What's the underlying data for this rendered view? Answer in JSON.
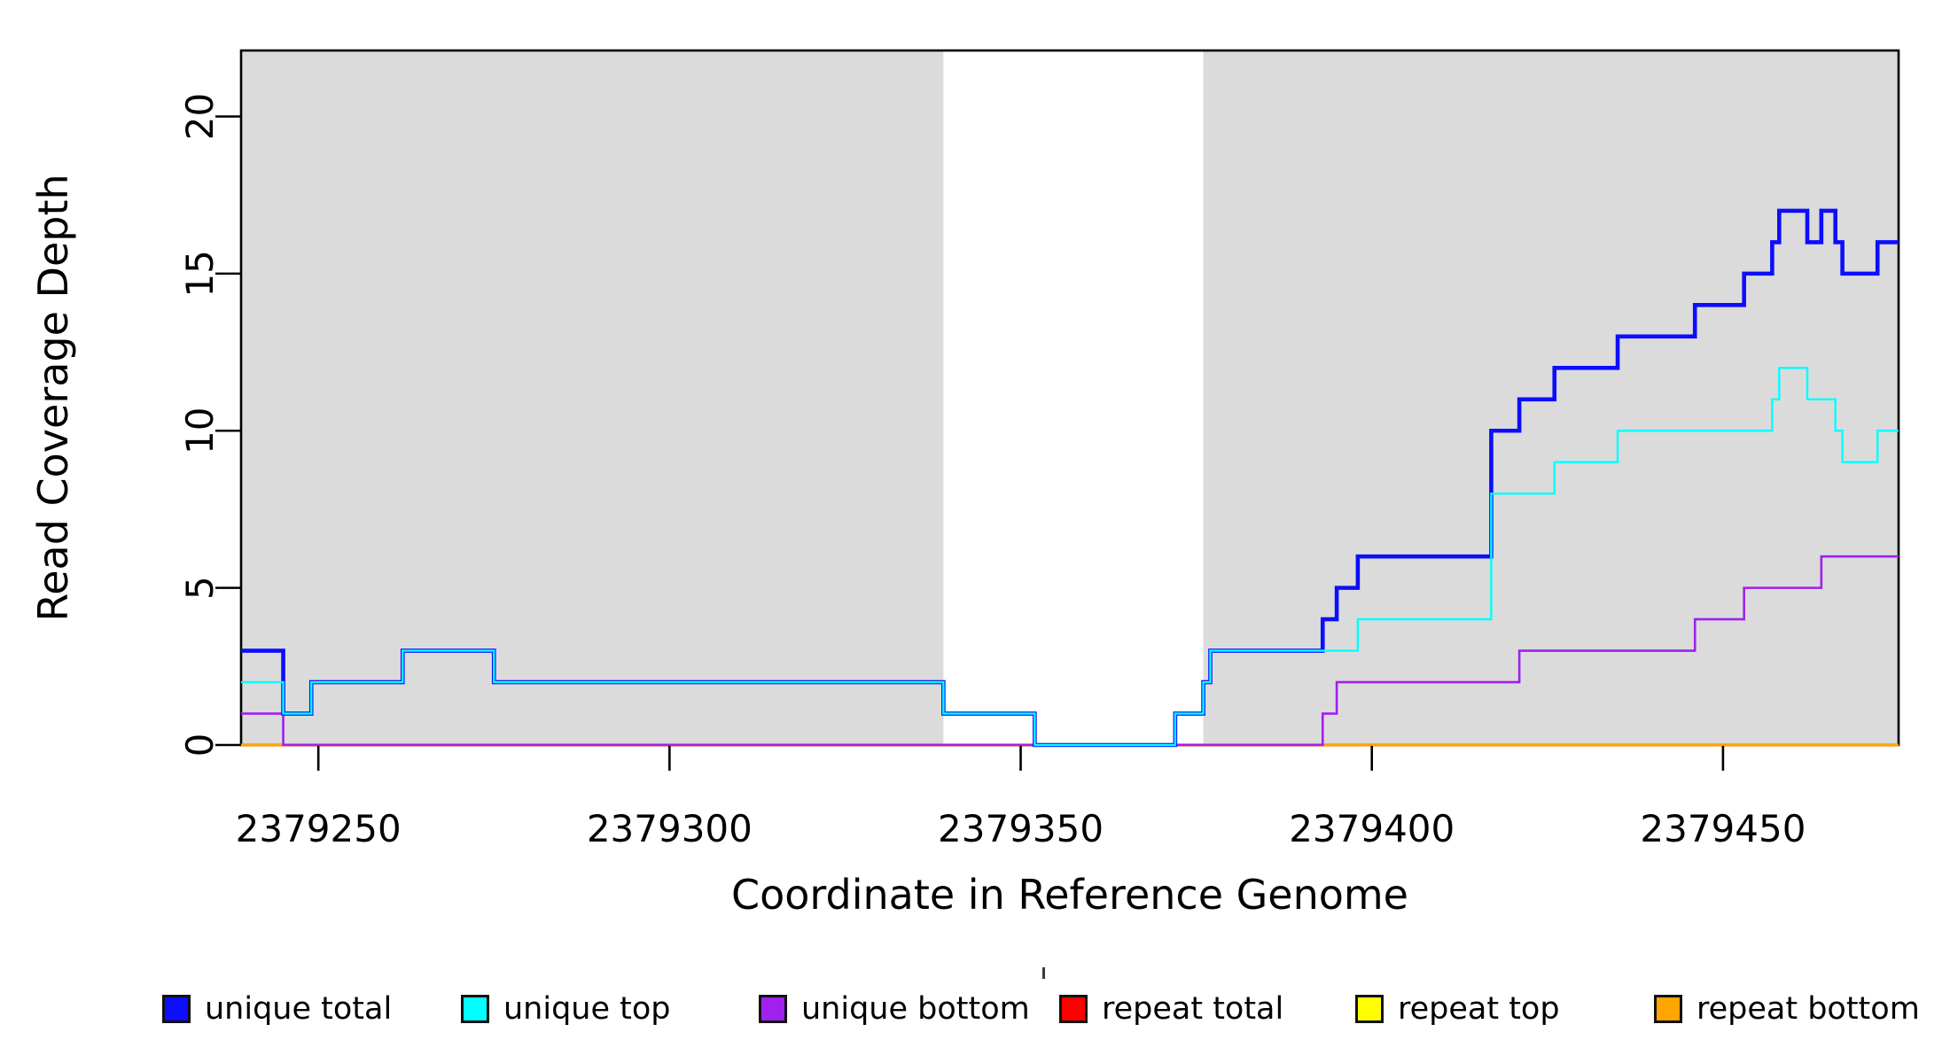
{
  "figure": {
    "background": "#FFFFFF",
    "shaded_color": "#DBDBDB",
    "box_color": "#000000"
  },
  "chart_data": {
    "type": "line",
    "step": true,
    "title": "",
    "xlabel": "Coordinate in Reference Genome",
    "ylabel": "Read Coverage Depth",
    "xlim": [
      2379239,
      2379475
    ],
    "ylim": [
      0,
      22.1
    ],
    "x_ticks": [
      2379250,
      2379300,
      2379350,
      2379400,
      2379450
    ],
    "y_ticks": [
      0,
      5,
      10,
      15,
      20
    ],
    "grid": false,
    "legend_position": "bottom",
    "shaded_regions": [
      {
        "name": "left-shaded-region",
        "x0": 2379239,
        "x1": 2379339
      },
      {
        "name": "right-shaded-region",
        "x0": 2379376,
        "x1": 2379475
      }
    ],
    "series": [
      {
        "name": "unique total",
        "color": "#0D0DFF",
        "steps": [
          [
            2379239,
            3
          ],
          [
            2379245,
            1
          ],
          [
            2379249,
            2
          ],
          [
            2379262,
            3
          ],
          [
            2379275,
            2
          ],
          [
            2379339,
            1
          ],
          [
            2379352,
            0
          ],
          [
            2379372,
            1
          ],
          [
            2379376,
            2
          ],
          [
            2379377,
            3
          ],
          [
            2379393,
            4
          ],
          [
            2379395,
            5
          ],
          [
            2379398,
            6
          ],
          [
            2379417,
            10
          ],
          [
            2379421,
            11
          ],
          [
            2379426,
            12
          ],
          [
            2379435,
            13
          ],
          [
            2379446,
            14
          ],
          [
            2379453,
            15
          ],
          [
            2379457,
            16
          ],
          [
            2379458,
            17
          ],
          [
            2379462,
            16
          ],
          [
            2379464,
            17
          ],
          [
            2379466,
            16
          ],
          [
            2379467,
            15
          ],
          [
            2379472,
            16
          ]
        ]
      },
      {
        "name": "unique top",
        "color": "#00FFFF",
        "steps": [
          [
            2379239,
            2
          ],
          [
            2379245,
            1
          ],
          [
            2379249,
            2
          ],
          [
            2379262,
            3
          ],
          [
            2379275,
            2
          ],
          [
            2379339,
            1
          ],
          [
            2379352,
            0
          ],
          [
            2379372,
            1
          ],
          [
            2379376,
            2
          ],
          [
            2379377,
            3
          ],
          [
            2379398,
            4
          ],
          [
            2379417,
            8
          ],
          [
            2379426,
            9
          ],
          [
            2379435,
            10
          ],
          [
            2379457,
            11
          ],
          [
            2379458,
            12
          ],
          [
            2379462,
            11
          ],
          [
            2379466,
            10
          ],
          [
            2379467,
            9
          ],
          [
            2379472,
            10
          ]
        ]
      },
      {
        "name": "unique bottom",
        "color": "#A020F0",
        "steps": [
          [
            2379239,
            1
          ],
          [
            2379245,
            0
          ],
          [
            2379393,
            1
          ],
          [
            2379395,
            2
          ],
          [
            2379421,
            3
          ],
          [
            2379446,
            4
          ],
          [
            2379453,
            5
          ],
          [
            2379464,
            6
          ]
        ]
      },
      {
        "name": "repeat total",
        "color": "#FF0000",
        "steps": [
          [
            2379239,
            0
          ]
        ]
      },
      {
        "name": "repeat top",
        "color": "#FFFF00",
        "steps": [
          [
            2379239,
            0
          ]
        ]
      },
      {
        "name": "repeat bottom",
        "color": "#FFA500",
        "steps": [
          [
            2379239,
            0
          ]
        ]
      }
    ]
  },
  "legend": {
    "items": [
      {
        "label": "unique total",
        "color": "#0D0DFF"
      },
      {
        "label": "unique top",
        "color": "#00FFFF"
      },
      {
        "label": "unique bottom",
        "color": "#A020F0"
      },
      {
        "label": "repeat total",
        "color": "#FF0000"
      },
      {
        "label": "repeat top",
        "color": "#FFFF00"
      },
      {
        "label": "repeat bottom",
        "color": "#FFA500"
      }
    ]
  }
}
